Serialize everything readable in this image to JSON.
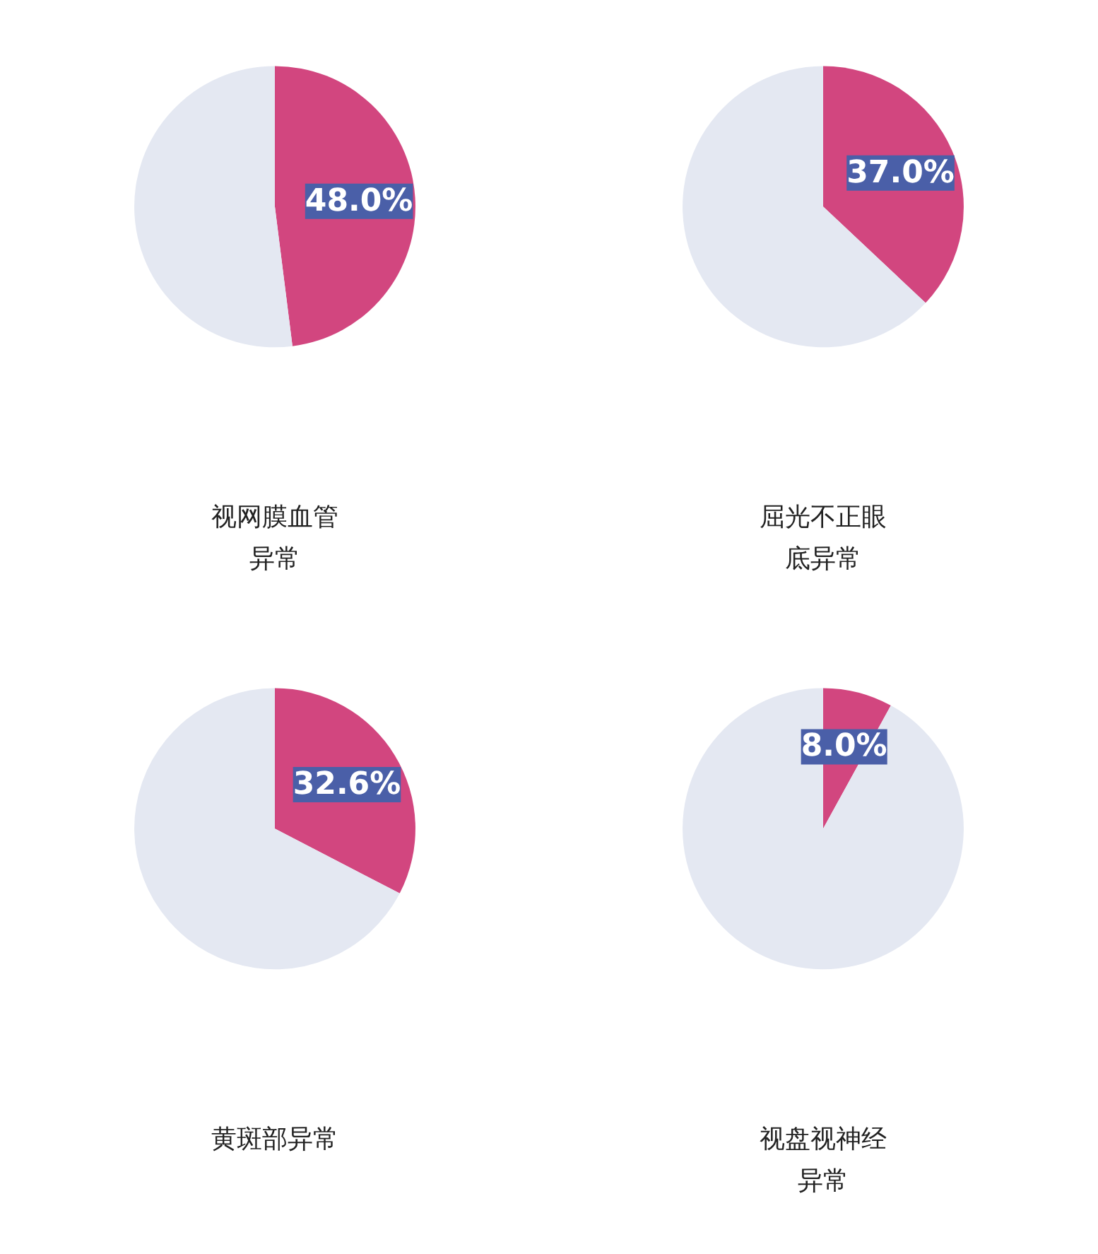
{
  "chart_data": [
    {
      "type": "pie",
      "title": "视网膜血管异常",
      "categories": [
        null,
        null
      ],
      "values": [
        48.0,
        52.0
      ],
      "colors": [
        "#d2467f",
        "#e4e8f2"
      ],
      "value_labels": [
        "48.0%",
        null
      ]
    },
    {
      "type": "pie",
      "title": "屈光不正眼底异常",
      "categories": [
        null,
        null
      ],
      "values": [
        37.0,
        63.0
      ],
      "colors": [
        "#d2467f",
        "#e4e8f2"
      ],
      "value_labels": [
        "37.0%",
        null
      ]
    },
    {
      "type": "pie",
      "title": "黄斑部异常",
      "categories": [
        null,
        null
      ],
      "values": [
        32.6,
        67.4
      ],
      "colors": [
        "#d2467f",
        "#e4e8f2"
      ],
      "value_labels": [
        "32.6%",
        null
      ]
    },
    {
      "type": "pie",
      "title": "视盘视神经异常",
      "categories": [
        null,
        null
      ],
      "values": [
        8.0,
        92.0
      ],
      "colors": [
        "#d2467f",
        "#e4e8f2"
      ],
      "value_labels": [
        "8.0%",
        null
      ]
    }
  ]
}
